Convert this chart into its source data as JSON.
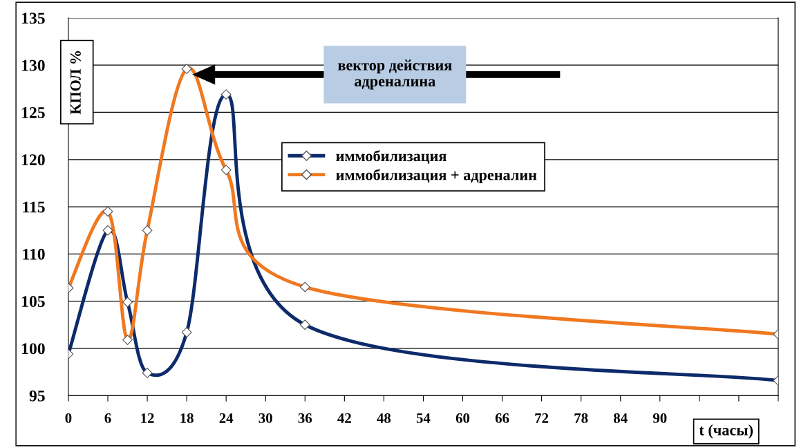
{
  "chart_data": {
    "type": "line",
    "xlabel": "t (часы)",
    "ylabel": "КПОЛ %",
    "x": [
      0,
      6,
      9,
      12,
      18,
      24,
      36,
      108
    ],
    "series": [
      {
        "name": "иммобилизация",
        "color": "#0d2b6b",
        "values": [
          99.4,
          112.5,
          104.9,
          97.4,
          101.7,
          126.9,
          102.5,
          96.6
        ]
      },
      {
        "name": "иммобилизация + адреналин",
        "color": "#f07820",
        "values": [
          106.4,
          114.5,
          100.9,
          112.5,
          129.6,
          118.9,
          106.5,
          101.5
        ]
      }
    ],
    "xlim": [
      0,
      108
    ],
    "xticks": [
      0,
      6,
      12,
      18,
      24,
      30,
      36,
      42,
      48,
      54,
      60,
      66,
      72,
      78,
      84,
      90,
      {
        "value": 96,
        "label": null
      },
      {
        "value": 102,
        "label": null
      },
      {
        "value": 108,
        "label": null
      }
    ],
    "ylim": [
      95,
      135
    ],
    "yticks": [
      95,
      100,
      105,
      110,
      115,
      120,
      125,
      130,
      135
    ],
    "grid": "y",
    "legend": "right",
    "marker": "diamond",
    "line_style": "solid",
    "annotations": [
      "вектор действия\nадреналина"
    ]
  }
}
